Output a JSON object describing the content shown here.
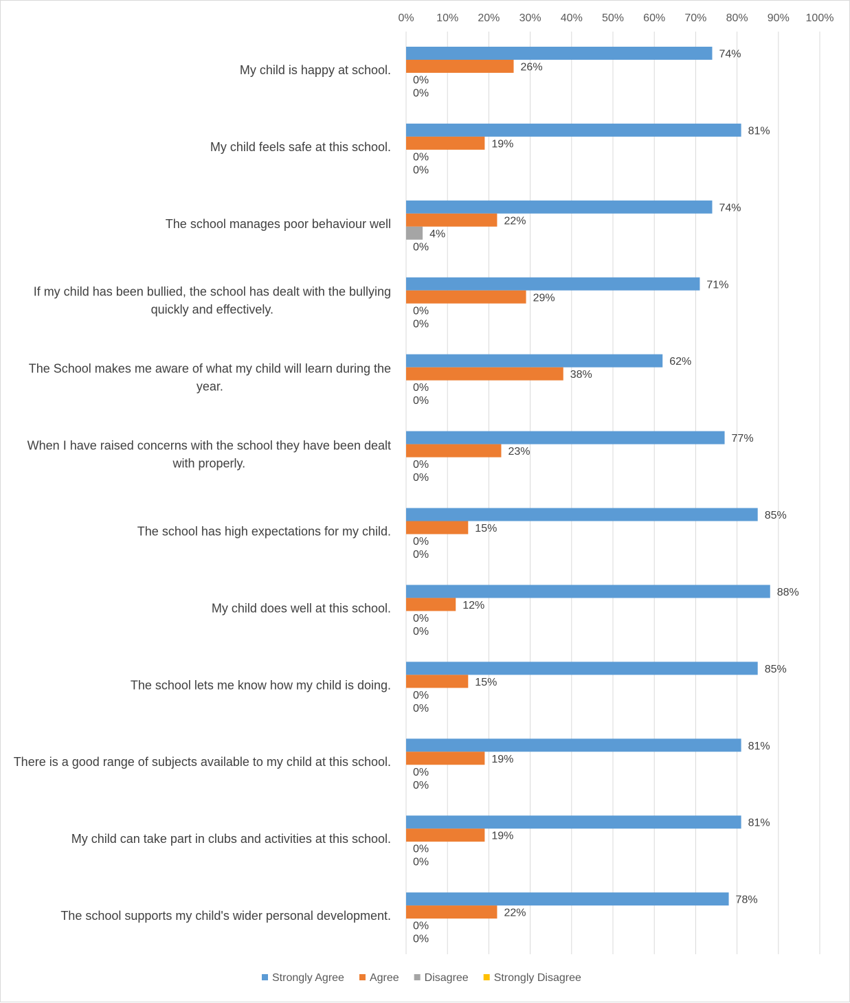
{
  "chart_data": {
    "type": "bar",
    "orientation": "horizontal",
    "title": "",
    "xlabel": "",
    "ylabel": "",
    "xlim": [
      0,
      100
    ],
    "x_ticks": [
      "0%",
      "10%",
      "20%",
      "30%",
      "40%",
      "50%",
      "60%",
      "70%",
      "80%",
      "90%",
      "100%"
    ],
    "grid": "vertical gridlines on",
    "legend_position": "bottom",
    "value_suffix": "%",
    "categories": [
      "My child is happy at school.",
      "My child feels safe at this school.",
      "The school manages poor behaviour well",
      "If my child has been bullied, the school has dealt with the bullying quickly and effectively.",
      "The School makes me aware of what my child will learn during the year.",
      "When I have raised concerns with the school they have been dealt with properly.",
      "The school has high expectations for my child.",
      "My child does well at this school.",
      "The school lets me know how my child is doing.",
      "There is a good range of subjects available to my child at this school.",
      "My child can take part in clubs and activities at this school.",
      "The school supports my child's wider personal development."
    ],
    "series": [
      {
        "name": "Strongly Agree",
        "color": "#5b9bd5",
        "values": [
          74,
          81,
          74,
          71,
          62,
          77,
          85,
          88,
          85,
          81,
          81,
          78
        ]
      },
      {
        "name": "Agree",
        "color": "#ed7d31",
        "values": [
          26,
          19,
          22,
          29,
          38,
          23,
          15,
          12,
          15,
          19,
          19,
          22
        ]
      },
      {
        "name": "Disagree",
        "color": "#a5a5a5",
        "values": [
          0,
          0,
          4,
          0,
          0,
          0,
          0,
          0,
          0,
          0,
          0,
          0
        ]
      },
      {
        "name": "Strongly Disagree",
        "color": "#ffc000",
        "values": [
          0,
          0,
          0,
          0,
          0,
          0,
          0,
          0,
          0,
          0,
          0,
          0
        ]
      }
    ]
  }
}
